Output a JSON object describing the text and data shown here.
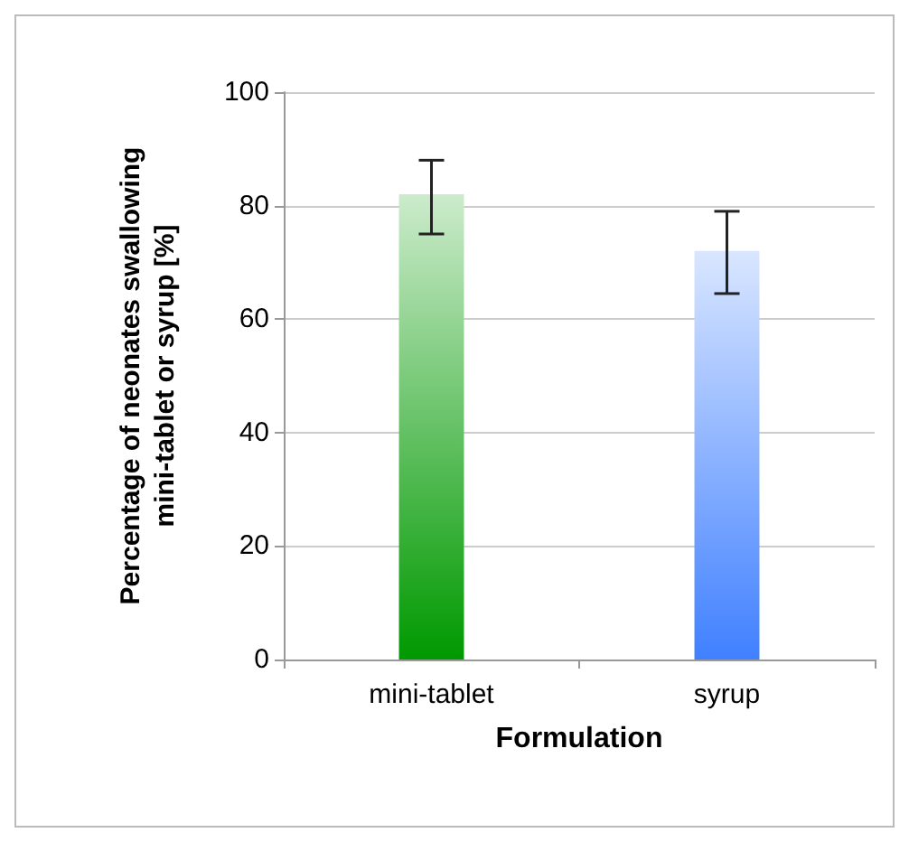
{
  "chart_data": {
    "type": "bar",
    "xlabel": "Formulation",
    "ylabel": "Percentage of neonates swallowing\nmini-tablet or syrup [%]",
    "categories": [
      "mini-tablet",
      "syrup"
    ],
    "values": [
      82,
      72
    ],
    "errors": [
      [
        75,
        88
      ],
      [
        64.5,
        79
      ]
    ],
    "colors": [
      "#009900",
      "#4080ff"
    ],
    "ylim": [
      0,
      100
    ],
    "yticks": [
      0,
      20,
      40,
      60,
      80,
      100
    ],
    "grid": "y"
  }
}
